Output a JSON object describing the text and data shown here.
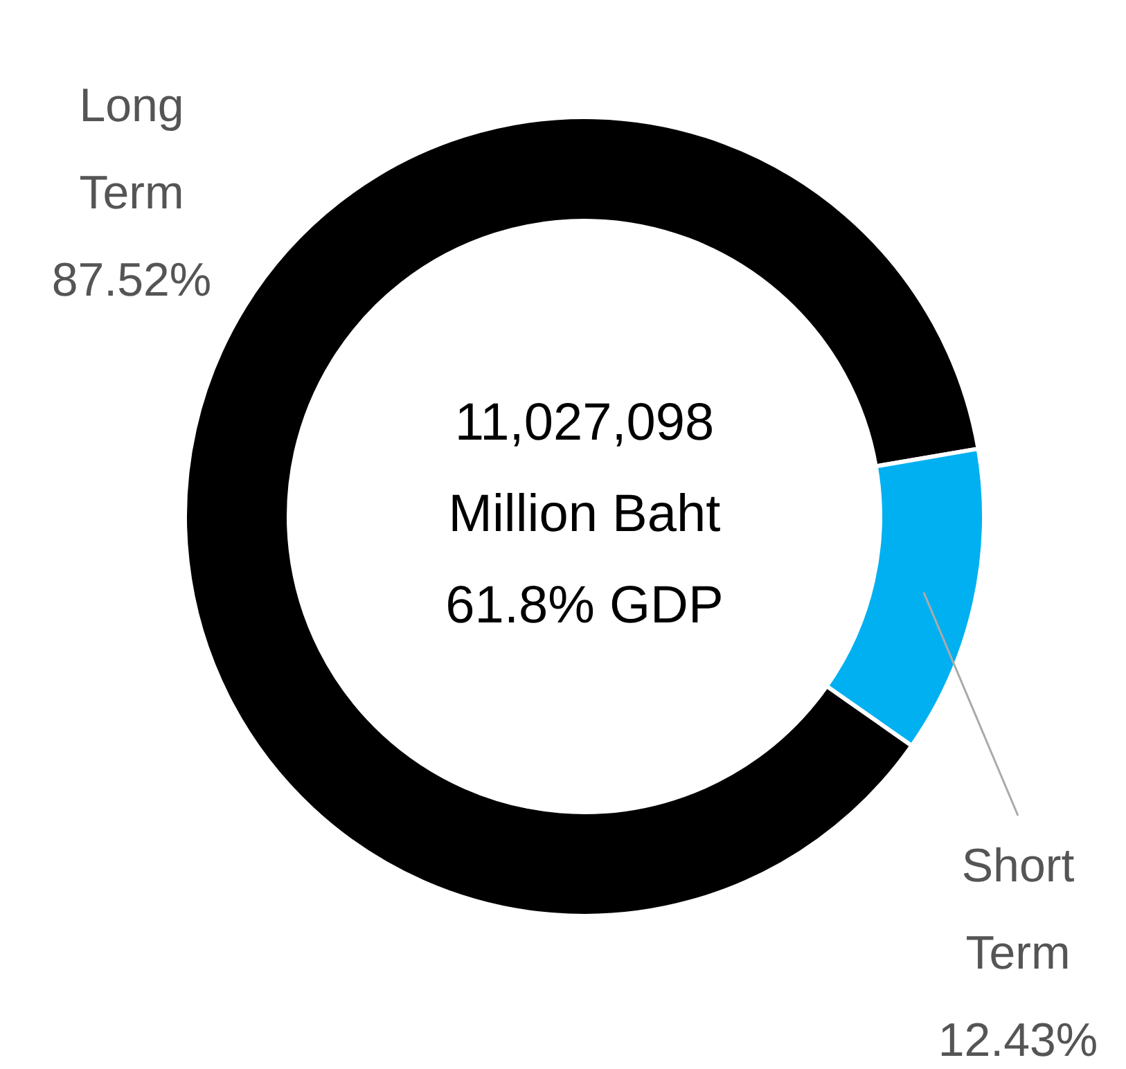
{
  "chart_data": {
    "type": "donut",
    "categories": [
      "Long Term",
      "Short Term"
    ],
    "values": [
      87.52,
      12.43
    ],
    "colors": [
      "#000000",
      "#00b0f0"
    ],
    "value_labels": [
      "87.52%",
      "12.43%"
    ],
    "annotations": [
      "11,027,098",
      "Million Baht",
      "61.8% GDP"
    ]
  }
}
